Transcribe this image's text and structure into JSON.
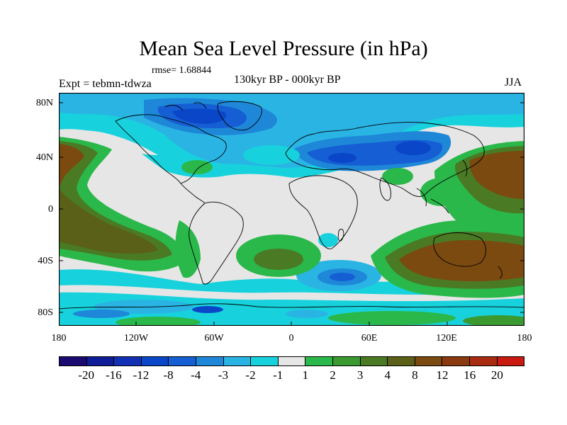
{
  "title": "Mean Sea Level Pressure (in hPa)",
  "rmse": "rmse= 1.68844",
  "expt": "Expt = tebmn-tdwza",
  "period": "130kyr BP - 000kyr BP",
  "season": "JJA",
  "lat_labels": [
    "80N",
    "40N",
    "0",
    "40S",
    "80S"
  ],
  "lon_labels": [
    "180",
    "120W",
    "60W",
    "0",
    "60E",
    "120E",
    "180"
  ],
  "colorbar": {
    "colors": [
      "#1a0a70",
      "#0f1e98",
      "#1230b4",
      "#0a46c8",
      "#155ed4",
      "#1e87d8",
      "#2ab4e4",
      "#17d2dc",
      "#e6e6e6",
      "#2ab84a",
      "#3a9a30",
      "#4a7a24",
      "#5a6018",
      "#7a4a10",
      "#8a3a10",
      "#a82a10",
      "#c81a10"
    ],
    "labels": [
      "-20",
      "-16",
      "-12",
      "-8",
      "-4",
      "-3",
      "-2",
      "-1",
      "1",
      "2",
      "3",
      "4",
      "8",
      "12",
      "16",
      "20"
    ]
  }
}
